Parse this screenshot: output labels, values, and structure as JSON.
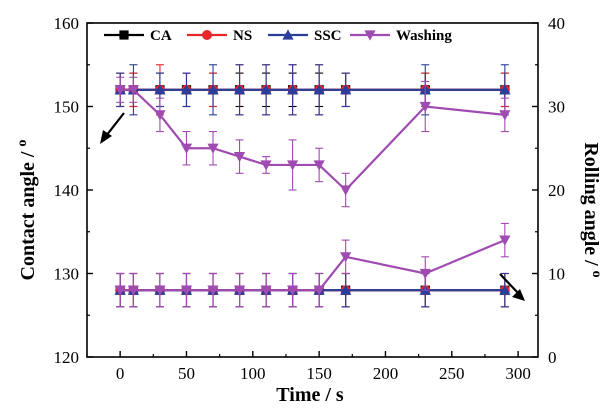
{
  "chart_data": {
    "type": "line",
    "xlabel": "Time / s",
    "ylabel_left": "Contact angle / ",
    "ylabel_left_unit": "o",
    "ylabel_right": "Rolling angle / ",
    "ylabel_right_unit": "o",
    "xlim": [
      -25,
      315
    ],
    "ylim_left": [
      120,
      160
    ],
    "ylim_right": [
      0,
      40
    ],
    "x_ticks": [
      0,
      50,
      100,
      150,
      200,
      250,
      300
    ],
    "y_left_ticks": [
      120,
      130,
      140,
      150,
      160
    ],
    "y_right_ticks": [
      0,
      10,
      20,
      30,
      40
    ],
    "legend_position": "top",
    "colors": {
      "CA": "#000000",
      "NS": "#e8262b",
      "SSC": "#2c3e9c",
      "Washing": "#a04bb1"
    },
    "series": [
      {
        "name": "CA",
        "marker": "square",
        "contact_angle": {
          "x": [
            0,
            10,
            30,
            50,
            70,
            90,
            110,
            130,
            150,
            170,
            230,
            290
          ],
          "y": [
            152,
            152,
            152,
            152,
            152,
            152,
            152,
            152,
            152,
            152,
            152,
            152
          ],
          "err": [
            2,
            2,
            2,
            2,
            2,
            2,
            2,
            2,
            2,
            2,
            2,
            2
          ]
        },
        "rolling_angle": {
          "x": [
            0,
            10,
            30,
            50,
            70,
            90,
            110,
            130,
            150,
            170,
            230,
            290
          ],
          "y": [
            8,
            8,
            8,
            8,
            8,
            8,
            8,
            8,
            8,
            8,
            8,
            8
          ],
          "err": [
            2,
            2,
            2,
            2,
            2,
            2,
            2,
            2,
            2,
            2,
            2,
            2
          ]
        }
      },
      {
        "name": "NS",
        "marker": "circle",
        "contact_angle": {
          "x": [
            0,
            10,
            30,
            50,
            70,
            90,
            110,
            130,
            150,
            170,
            230,
            290
          ],
          "y": [
            152,
            152,
            152,
            152,
            152,
            152,
            152,
            152,
            152,
            152,
            152,
            152
          ],
          "err": [
            2,
            2,
            3,
            2,
            2,
            3,
            3,
            3,
            3,
            2,
            2,
            2
          ]
        },
        "rolling_angle": {
          "x": [
            0,
            10,
            30,
            50,
            70,
            90,
            110,
            130,
            150,
            170,
            230,
            290
          ],
          "y": [
            8,
            8,
            8,
            8,
            8,
            8,
            8,
            8,
            8,
            8,
            8,
            8
          ],
          "err": [
            2,
            2,
            2,
            2,
            2,
            2,
            2,
            2,
            2,
            2,
            2,
            2
          ]
        }
      },
      {
        "name": "SSC",
        "marker": "triangle-up",
        "contact_angle": {
          "x": [
            0,
            10,
            30,
            50,
            70,
            90,
            110,
            130,
            150,
            170,
            230,
            290
          ],
          "y": [
            152,
            152,
            152,
            152,
            152,
            152,
            152,
            152,
            152,
            152,
            152,
            152
          ],
          "err": [
            2,
            3,
            2,
            2,
            3,
            3,
            3,
            3,
            3,
            2,
            3,
            3
          ]
        },
        "rolling_angle": {
          "x": [
            0,
            10,
            30,
            50,
            70,
            90,
            110,
            130,
            150,
            170,
            230,
            290
          ],
          "y": [
            8,
            8,
            8,
            8,
            8,
            8,
            8,
            8,
            8,
            8,
            8,
            8
          ],
          "err": [
            2,
            2,
            2,
            2,
            2,
            2,
            2,
            2,
            2,
            2,
            2,
            2
          ]
        }
      },
      {
        "name": "Washing",
        "marker": "triangle-down",
        "contact_angle": {
          "x": [
            0,
            10,
            30,
            50,
            70,
            90,
            110,
            130,
            150,
            170,
            230,
            290
          ],
          "y": [
            152,
            152,
            149,
            145,
            145,
            144,
            143,
            143,
            143,
            140,
            150,
            149
          ],
          "err": [
            1.5,
            1.5,
            2,
            2,
            2,
            2,
            1,
            3,
            2,
            2,
            3,
            2
          ]
        },
        "rolling_angle": {
          "x": [
            0,
            10,
            30,
            50,
            70,
            90,
            110,
            130,
            150,
            170,
            230,
            290
          ],
          "y": [
            8,
            8,
            8,
            8,
            8,
            8,
            8,
            8,
            8,
            12,
            10,
            14
          ],
          "err": [
            2,
            2,
            2,
            2,
            2,
            2,
            2,
            2,
            2,
            2,
            2,
            2
          ]
        }
      }
    ]
  }
}
